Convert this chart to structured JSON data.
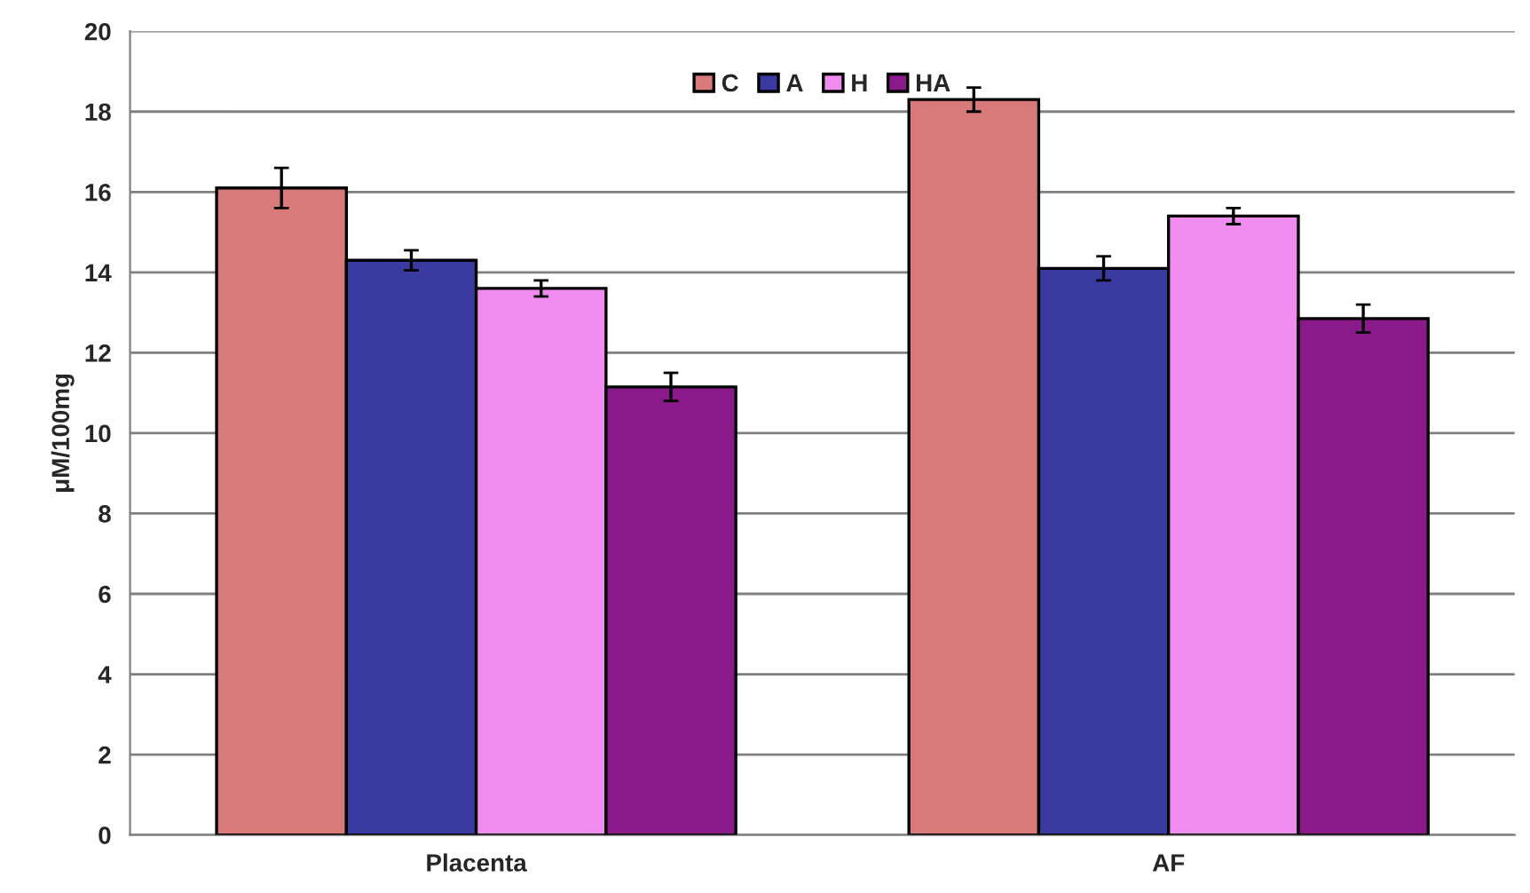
{
  "chart_data": {
    "type": "bar",
    "ylabel": "μM/100mg",
    "categories": [
      "Placenta",
      "AF"
    ],
    "series": [
      {
        "name": "C",
        "color": "#d97a7a",
        "values": [
          16.1,
          18.3
        ],
        "errors": [
          0.5,
          0.3
        ]
      },
      {
        "name": "A",
        "color": "#3a3aa0",
        "values": [
          14.3,
          14.1
        ],
        "errors": [
          0.25,
          0.3
        ]
      },
      {
        "name": "H",
        "color": "#f08cf0",
        "values": [
          13.6,
          15.4
        ],
        "errors": [
          0.2,
          0.2
        ]
      },
      {
        "name": "HA",
        "color": "#8a1a8a",
        "values": [
          11.15,
          12.85
        ],
        "errors": [
          0.35,
          0.35
        ]
      }
    ],
    "ylim": [
      0,
      20
    ],
    "yticks": [
      0,
      2,
      4,
      6,
      8,
      10,
      12,
      14,
      16,
      18,
      20
    ],
    "grid": "y",
    "legend": "top"
  }
}
